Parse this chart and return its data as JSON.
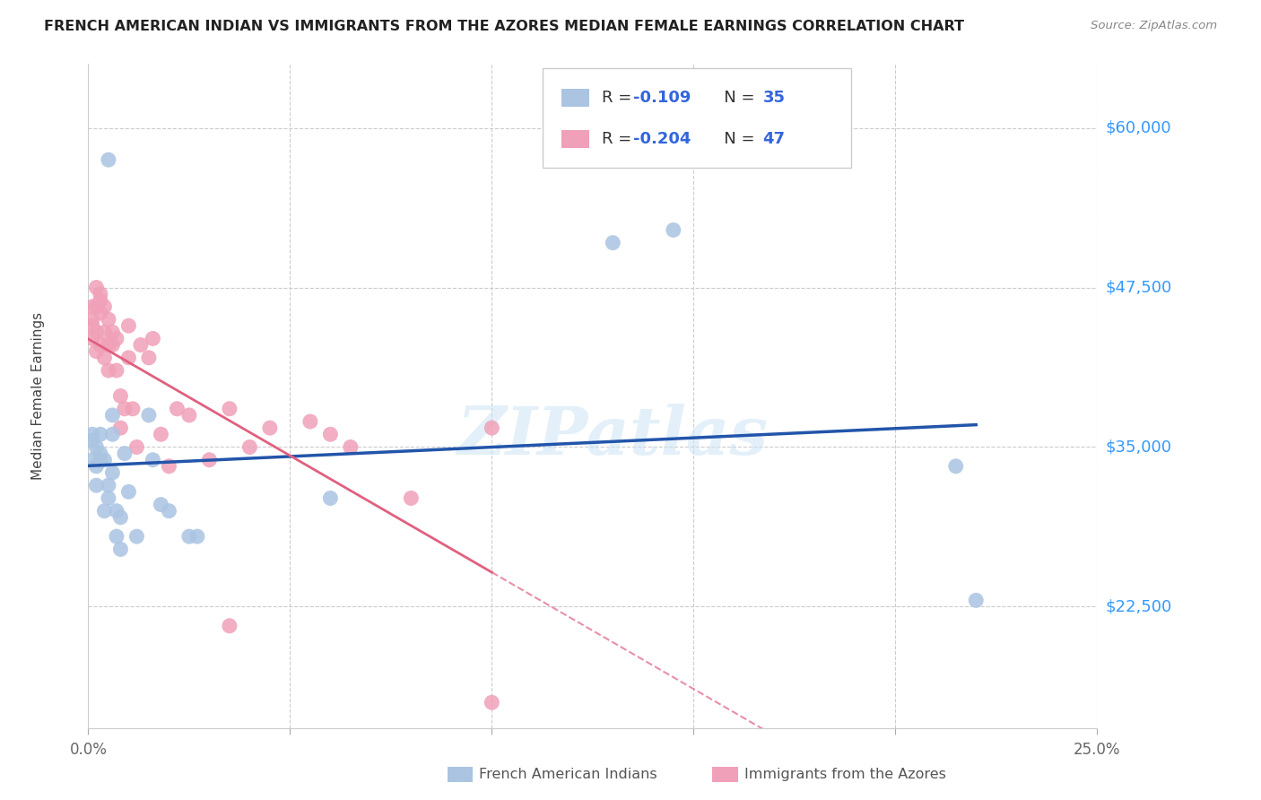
{
  "title": "FRENCH AMERICAN INDIAN VS IMMIGRANTS FROM THE AZORES MEDIAN FEMALE EARNINGS CORRELATION CHART",
  "source": "Source: ZipAtlas.com",
  "ylabel": "Median Female Earnings",
  "yticks": [
    22500,
    35000,
    47500,
    60000
  ],
  "ytick_labels": [
    "$22,500",
    "$35,000",
    "$47,500",
    "$60,000"
  ],
  "xlim": [
    0,
    0.25
  ],
  "ylim": [
    13000,
    65000
  ],
  "watermark": "ZIPatlas",
  "series_blue_label": "French American Indians",
  "series_blue_R": "-0.109",
  "series_blue_N": "35",
  "series_blue_color": "#aac4e2",
  "series_blue_edge_color": "#aac4e2",
  "series_blue_line_color": "#2255aa",
  "series_pink_label": "Immigrants from the Azores",
  "series_pink_R": "-0.204",
  "series_pink_N": "47",
  "series_pink_color": "#f0a0b8",
  "series_pink_edge_color": "#f0a0b8",
  "series_pink_line_color": "#e06080",
  "blue_x": [
    0.005,
    0.001,
    0.001,
    0.001,
    0.002,
    0.002,
    0.002,
    0.003,
    0.003,
    0.003,
    0.004,
    0.004,
    0.005,
    0.005,
    0.006,
    0.006,
    0.006,
    0.007,
    0.007,
    0.008,
    0.008,
    0.009,
    0.01,
    0.012,
    0.015,
    0.016,
    0.018,
    0.02,
    0.025,
    0.027,
    0.13,
    0.145,
    0.215,
    0.22,
    0.06
  ],
  "blue_y": [
    57500,
    35500,
    34000,
    36000,
    33500,
    35000,
    32000,
    34000,
    34500,
    36000,
    34000,
    30000,
    31000,
    32000,
    36000,
    33000,
    37500,
    30000,
    28000,
    29500,
    27000,
    34500,
    31500,
    28000,
    37500,
    34000,
    30500,
    30000,
    28000,
    28000,
    51000,
    52000,
    33500,
    23000,
    31000
  ],
  "pink_x": [
    0.001,
    0.001,
    0.001,
    0.001,
    0.002,
    0.002,
    0.002,
    0.002,
    0.003,
    0.003,
    0.003,
    0.003,
    0.004,
    0.004,
    0.004,
    0.005,
    0.005,
    0.005,
    0.006,
    0.006,
    0.007,
    0.007,
    0.008,
    0.008,
    0.009,
    0.01,
    0.01,
    0.011,
    0.012,
    0.013,
    0.015,
    0.016,
    0.018,
    0.02,
    0.022,
    0.025,
    0.03,
    0.035,
    0.04,
    0.045,
    0.055,
    0.06,
    0.065,
    0.08,
    0.1,
    0.035,
    0.1
  ],
  "pink_y": [
    44500,
    46000,
    45000,
    43500,
    47500,
    46000,
    44000,
    42500,
    47000,
    46500,
    45500,
    43000,
    46000,
    44000,
    42000,
    45000,
    43000,
    41000,
    44000,
    43000,
    43500,
    41000,
    39000,
    36500,
    38000,
    44500,
    42000,
    38000,
    35000,
    43000,
    42000,
    43500,
    36000,
    33500,
    38000,
    37500,
    34000,
    38000,
    35000,
    36500,
    37000,
    36000,
    35000,
    31000,
    36500,
    21000,
    15000
  ]
}
